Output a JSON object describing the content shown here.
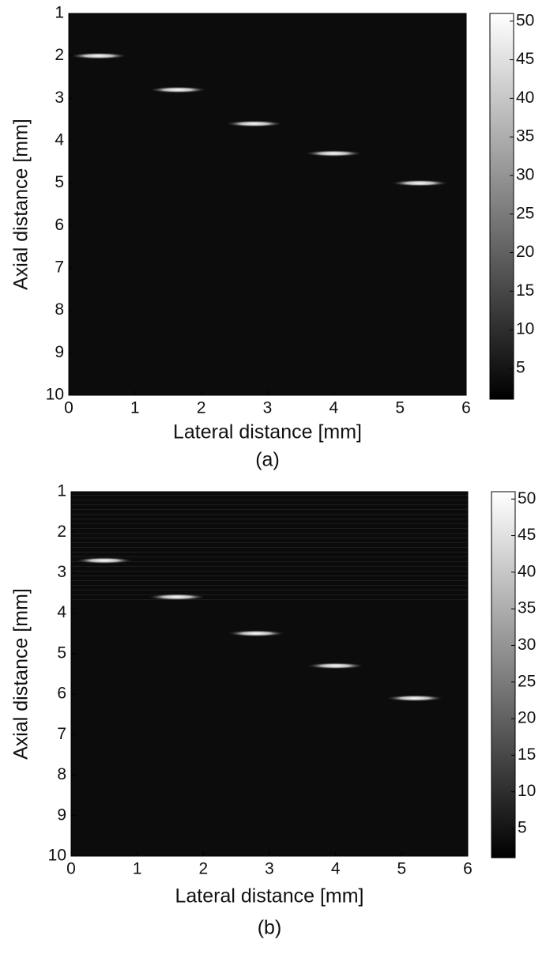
{
  "chart_data": [
    {
      "type": "image",
      "x_label": "Lateral distance [mm]",
      "y_label": "Axial distance [mm]",
      "caption": "(a)",
      "xlim": [
        0,
        6
      ],
      "ylim": [
        10,
        1
      ],
      "xticks": [
        0,
        1,
        2,
        3,
        4,
        5,
        6
      ],
      "yticks": [
        1,
        2,
        3,
        4,
        5,
        6,
        7,
        8,
        9,
        10
      ],
      "points": {
        "x": [
          0.45,
          1.65,
          2.8,
          4.0,
          5.3
        ],
        "y": [
          2.0,
          2.8,
          3.6,
          4.3,
          5.0
        ]
      },
      "colorbar": {
        "lim": [
          1,
          51
        ],
        "ticks": [
          5,
          10,
          15,
          20,
          25,
          30,
          35,
          40,
          45,
          50
        ]
      }
    },
    {
      "type": "image",
      "x_label": "Lateral distance [mm]",
      "y_label": "Axial distance [mm]",
      "caption": "(b)",
      "xlim": [
        0,
        6
      ],
      "ylim": [
        10,
        1
      ],
      "xticks": [
        0,
        1,
        2,
        3,
        4,
        5,
        6
      ],
      "yticks": [
        1,
        2,
        3,
        4,
        5,
        6,
        7,
        8,
        9,
        10
      ],
      "points": {
        "x": [
          0.5,
          1.6,
          2.8,
          4.0,
          5.2
        ],
        "y": [
          2.7,
          3.6,
          4.5,
          5.3,
          6.1
        ]
      },
      "colorbar": {
        "lim": [
          1,
          51
        ],
        "ticks": [
          5,
          10,
          15,
          20,
          25,
          30,
          35,
          40,
          45,
          50
        ]
      }
    }
  ]
}
